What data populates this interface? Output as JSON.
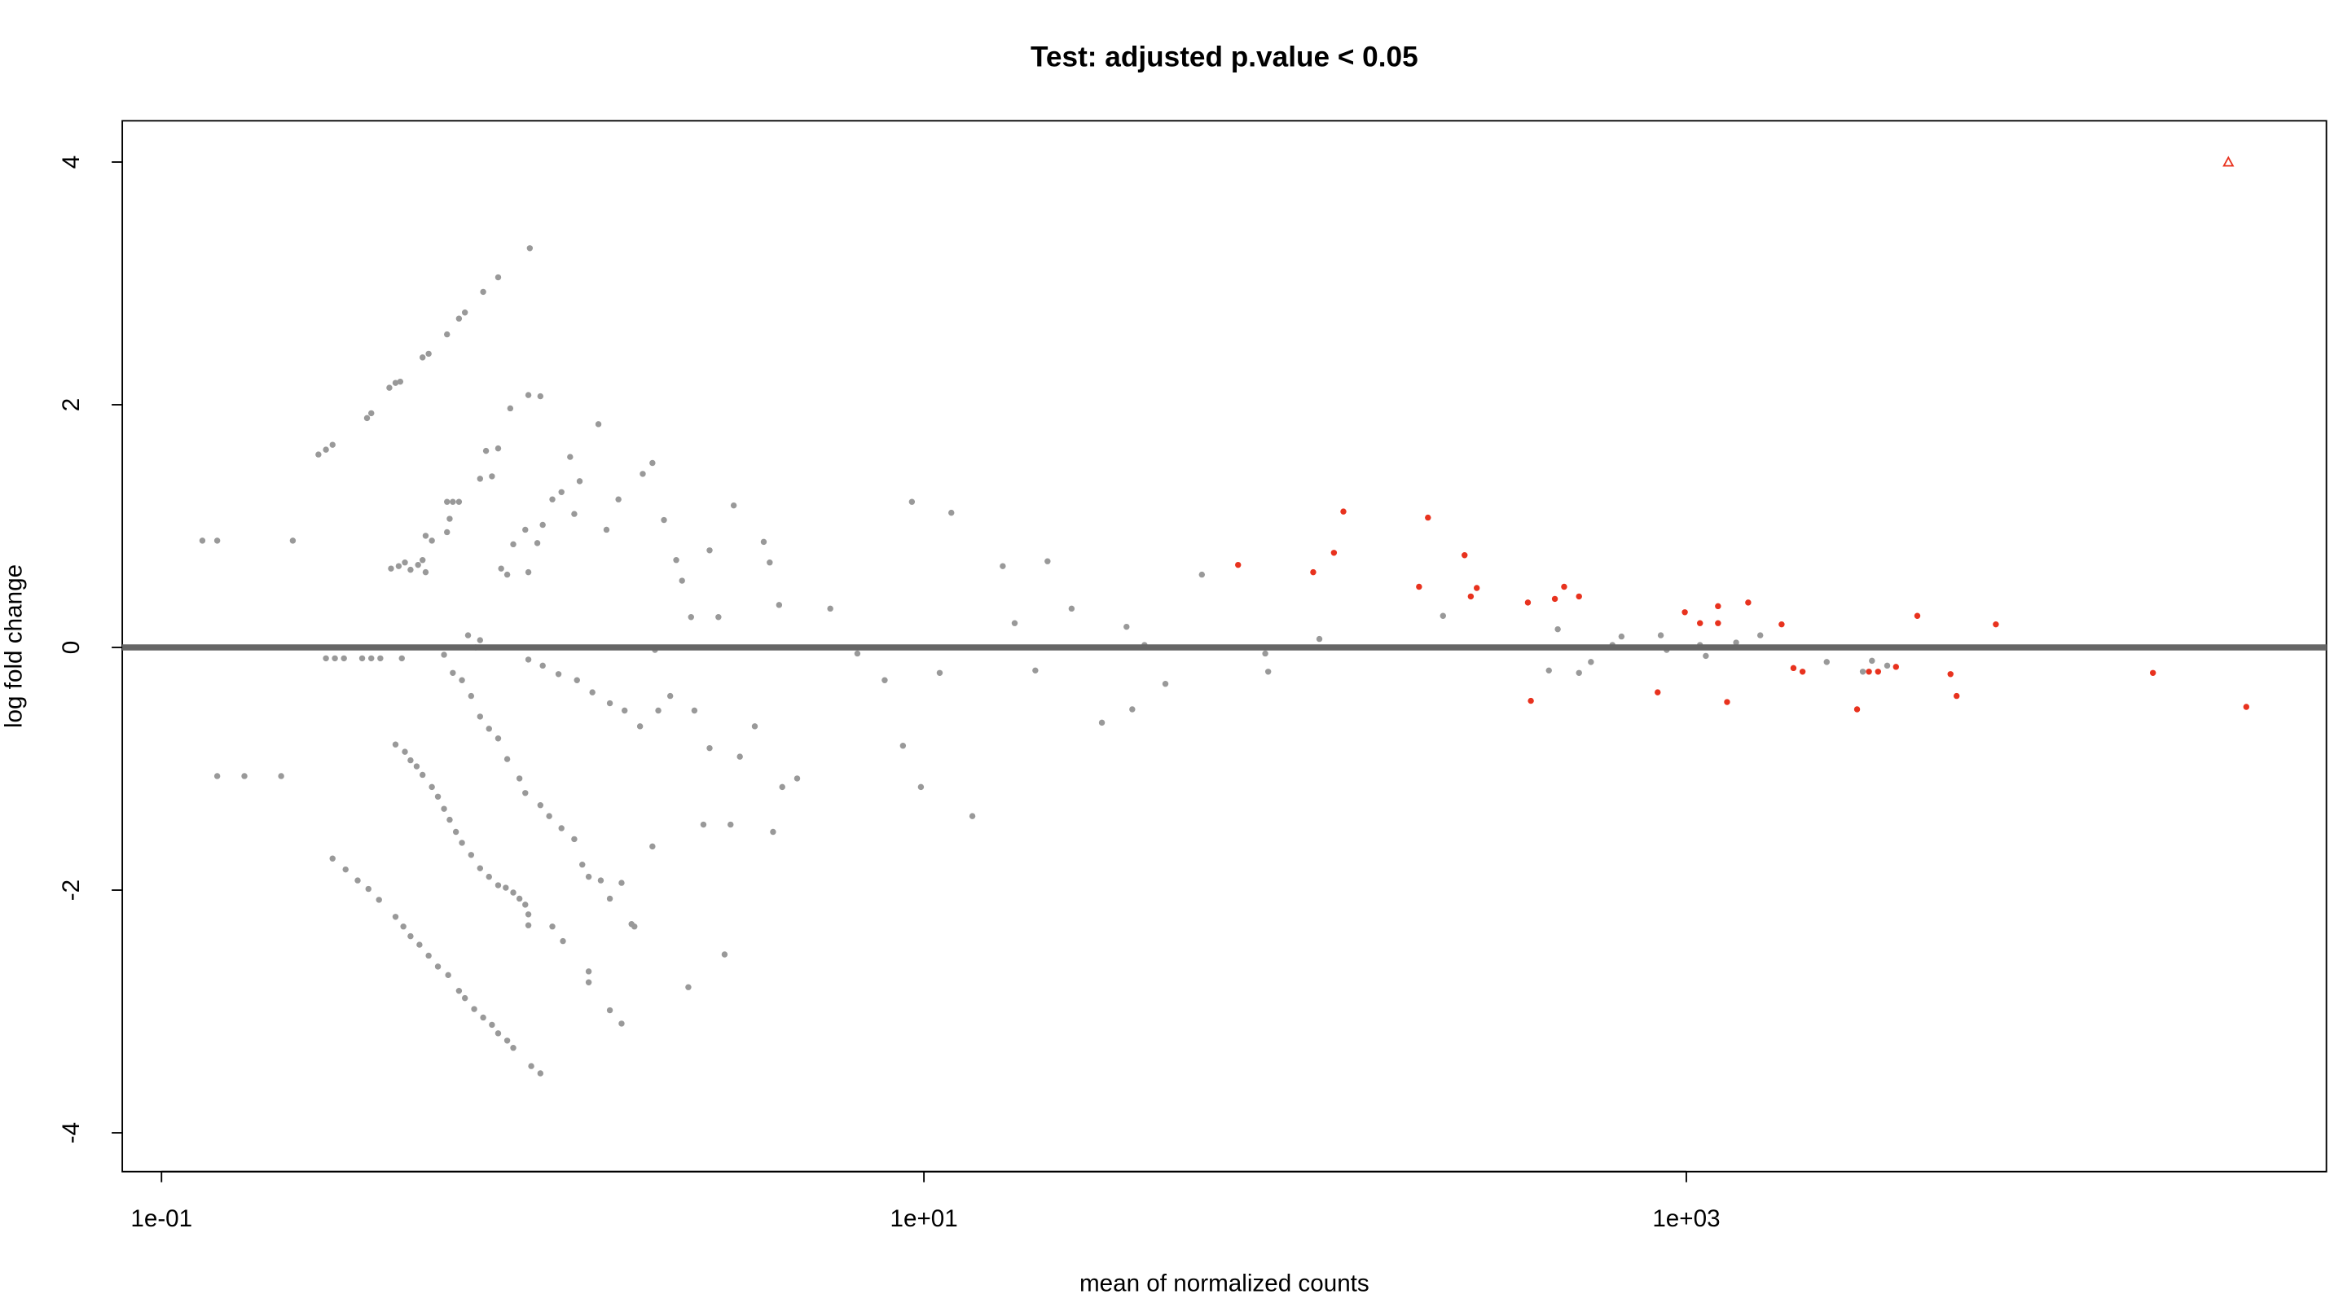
{
  "chart_data": {
    "type": "scatter",
    "title": "Test: adjusted p.value < 0.05",
    "x_label": "mean of normalized counts",
    "y_label": "log fold change",
    "xscale": "log",
    "xlim": [
      0.0789,
      47760
    ],
    "ylim": [
      -4.32,
      4.34
    ],
    "xticks": [
      {
        "value": 0.1,
        "label": "1e-01"
      },
      {
        "value": 10,
        "label": "1e+01"
      },
      {
        "value": 1000,
        "label": "1e+03"
      }
    ],
    "yticks": [
      -4,
      -2,
      0,
      2,
      4
    ],
    "hline": 0,
    "hline_color": "#666666",
    "series": [
      {
        "color": "#999999",
        "marker": "dot",
        "x": [
          0.128,
          0.14,
          0.221,
          0.14,
          0.165,
          0.206,
          0.258,
          0.27,
          0.281,
          0.27,
          0.285,
          0.301,
          0.336,
          0.355,
          0.375,
          0.427,
          0.346,
          0.355,
          0.396,
          0.411,
          0.423,
          0.4,
          0.419,
          0.435,
          0.45,
          0.471,
          0.484,
          0.493,
          0.281,
          0.304,
          0.327,
          0.349,
          0.372,
          0.411,
          0.431,
          0.45,
          0.475,
          0.502,
          0.531,
          0.565,
          0.603,
          0.625,
          0.661,
          0.698,
          0.736,
          0.764,
          0.807,
          0.837,
          0.933,
          0.986,
          0.411,
          0.435,
          0.45,
          0.467,
          0.484,
          0.512,
          0.531,
          0.551,
          0.57,
          0.592,
          0.614,
          0.649,
          0.685,
          0.723,
          0.764,
          0.8,
          0.837,
          0.869,
          0.9,
          0.917,
          0.917,
          1.06,
          1.13,
          0.484,
          0.502,
          0.561,
          0.603,
          0.625,
          0.698,
          0.764,
          0.925,
          0.822,
          0.917,
          0.986,
          0.71,
          0.764,
          0.736,
          0.685,
          0.561,
          0.581,
          0.603,
          0.57,
          0.493,
          0.512,
          0.561,
          0.637,
          0.685,
          0.667,
          0.551,
          0.581,
          0.614,
          0.649,
          0.685,
          0.723,
          0.764,
          0.807,
          0.869,
          0.9,
          0.986,
          1.04,
          1.12,
          1.21,
          1.27,
          1.32,
          1.42,
          1.5,
          1.61,
          1.32,
          1.32,
          1.5,
          1.61,
          1.71,
          1.74,
          2.41,
          3.0,
          0.837,
          0.9,
          0.968,
          0.778,
          0.807,
          0.917,
          1.0,
          1.06,
          1.12,
          1.18,
          1.21,
          1.25,
          1.4,
          1.47,
          1.58,
          1.83,
          1.94,
          1.97,
          2.08,
          2.24,
          2.32,
          2.45,
          2.74,
          2.89,
          3.17,
          3.8,
          3.94,
          4.17,
          5.68,
          6.69,
          7.89,
          8.81,
          9.3,
          9.82,
          11.8,
          16.1,
          17.3,
          21.1,
          24.4,
          29.3,
          34.0,
          35.2,
          37.9,
          43.0,
          53.6,
          13.4,
          11.0,
          19.6,
          78.6,
          80.0,
          109,
          230,
          460,
          436,
          523,
          562,
          640,
          676,
          857,
          888,
          1086,
          1125,
          1351,
          1563,
          2335,
          3069,
          2904,
          3365,
          0.917,
          1.0,
          1.1,
          1.23,
          1.35,
          1.5,
          1.64,
          1.8,
          2.01,
          2.16,
          2.5,
          2.74,
          3.29,
          3.6,
          4.25,
          4.65,
          2.64,
          1.94,
          3.11,
          4.02
        ],
        "values": [
          0.88,
          0.88,
          0.88,
          -1.06,
          -1.06,
          -1.06,
          1.59,
          1.63,
          1.67,
          -0.09,
          -0.09,
          -0.09,
          -0.09,
          -0.09,
          -0.09,
          -0.09,
          1.89,
          1.93,
          2.14,
          2.18,
          2.19,
          0.65,
          0.67,
          0.7,
          0.64,
          0.68,
          0.72,
          0.62,
          -1.74,
          -1.83,
          -1.92,
          -1.99,
          -2.08,
          -2.22,
          -2.3,
          -2.38,
          -2.45,
          -2.54,
          -2.63,
          -2.7,
          -2.83,
          -2.89,
          -2.98,
          -3.05,
          -3.11,
          -3.18,
          -3.24,
          -3.3,
          -3.45,
          -3.51,
          -0.8,
          -0.86,
          -0.93,
          -0.98,
          -1.05,
          -1.15,
          -1.23,
          -1.33,
          -1.42,
          -1.52,
          -1.61,
          -1.71,
          -1.82,
          -1.89,
          -1.96,
          -1.98,
          -2.02,
          -2.07,
          -2.12,
          -2.2,
          -2.29,
          -2.3,
          -2.42,
          2.39,
          2.42,
          2.58,
          2.71,
          2.76,
          2.93,
          3.05,
          3.29,
          1.97,
          2.08,
          2.07,
          1.62,
          1.64,
          1.41,
          1.39,
          1.2,
          1.2,
          1.2,
          1.06,
          0.92,
          0.88,
          0.95,
          0.1,
          0.06,
          0.0,
          -0.06,
          -0.21,
          -0.27,
          -0.4,
          -0.57,
          -0.67,
          -0.75,
          -0.92,
          -1.08,
          -1.2,
          -1.3,
          -1.39,
          -1.49,
          -1.58,
          -1.79,
          -1.89,
          -1.92,
          -2.07,
          -1.94,
          -2.67,
          -2.76,
          -2.99,
          -3.1,
          -2.28,
          -2.3,
          -2.8,
          -2.53,
          0.85,
          0.97,
          0.86,
          0.65,
          0.6,
          0.62,
          1.01,
          1.22,
          1.28,
          1.57,
          1.1,
          1.37,
          1.84,
          0.97,
          1.22,
          1.43,
          1.52,
          -0.02,
          1.05,
          0.72,
          0.55,
          0.25,
          0.8,
          0.25,
          1.17,
          0.87,
          0.7,
          0.35,
          0.32,
          -0.05,
          -0.27,
          -0.81,
          1.2,
          -1.15,
          1.11,
          0.67,
          0.2,
          0.71,
          0.32,
          -0.62,
          0.17,
          -0.51,
          0.02,
          -0.3,
          0.6,
          -1.39,
          -0.21,
          -0.19,
          -0.05,
          -0.2,
          0.07,
          0.26,
          0.15,
          -0.19,
          -0.21,
          -0.12,
          0.02,
          0.09,
          0.1,
          -0.02,
          0.02,
          -0.07,
          0.04,
          0.1,
          -0.12,
          -0.11,
          -0.2,
          -0.15,
          -0.1,
          -0.15,
          -0.22,
          -0.27,
          -0.37,
          -0.46,
          -0.52,
          -0.65,
          -0.52,
          -0.4,
          -0.52,
          -0.83,
          -0.9,
          -0.65,
          -1.15,
          -1.08,
          -1.46,
          -1.64,
          -1.46,
          -1.52
        ]
      },
      {
        "color": "#e8321e",
        "marker": "dot",
        "x": [
          66.7,
          105,
          119,
          126,
          199,
          210,
          262,
          272,
          282,
          384,
          391,
          452,
          478,
          523,
          841,
          991,
          1086,
          1211,
          1211,
          1279,
          1453,
          1778,
          1910,
          2018,
          2805,
          3013,
          3184,
          3548,
          4036,
          4932,
          5117,
          6486,
          16750,
          29440
        ],
        "values": [
          0.68,
          0.62,
          0.78,
          1.12,
          0.5,
          1.07,
          0.76,
          0.42,
          0.49,
          0.37,
          -0.44,
          0.4,
          0.5,
          0.42,
          -0.37,
          0.29,
          0.2,
          0.34,
          0.2,
          -0.45,
          0.37,
          0.19,
          -0.17,
          -0.2,
          -0.51,
          -0.2,
          -0.2,
          -0.16,
          0.26,
          -0.22,
          -0.4,
          0.19,
          -0.21,
          -0.49
        ]
      },
      {
        "color": "#e8321e",
        "marker": "triangle",
        "x": [
          26420
        ],
        "values": [
          4
        ]
      }
    ]
  }
}
